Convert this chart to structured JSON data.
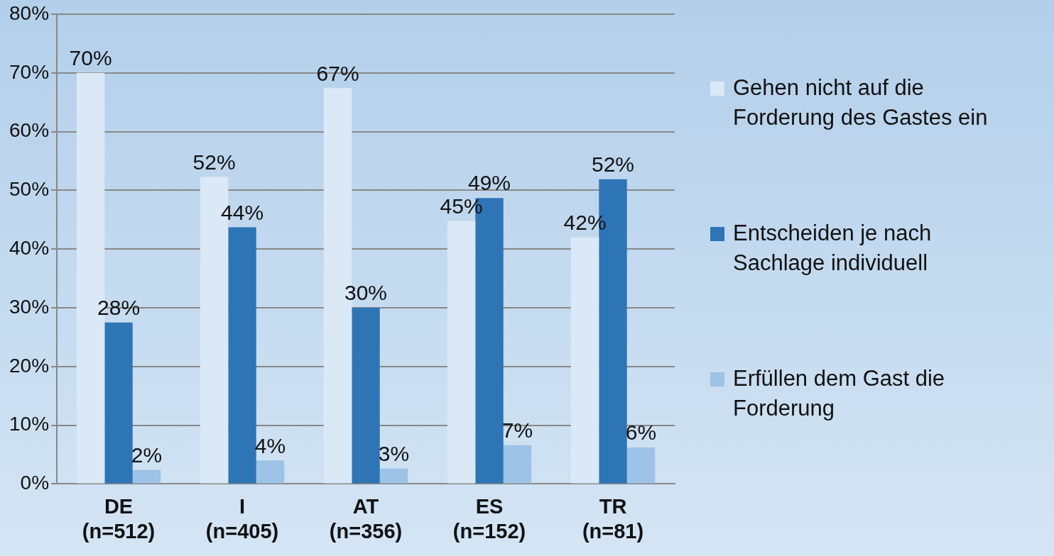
{
  "chart_data": {
    "type": "bar",
    "categories": [
      "DE (n=512)",
      "I (n=405)",
      "AT (n=356)",
      "ES (n=152)",
      "TR (n=81)"
    ],
    "series": [
      {
        "name": "Gehen nicht auf die Forderung des Gastes ein",
        "color": "#dbe8f5",
        "values": [
          70,
          52.3,
          67.4,
          44.8,
          42
        ],
        "value_labels": [
          "70%",
          "52%",
          "67%",
          "45%",
          "42%"
        ]
      },
      {
        "name": "Entscheiden je nach Sachlage individuell",
        "color": "#2e75b6",
        "values": [
          27.5,
          43.7,
          30,
          48.7,
          51.9
        ],
        "value_labels": [
          "28%",
          "44%",
          "30%",
          "49%",
          "52%"
        ]
      },
      {
        "name": "Erfüllen dem Gast die Forderung",
        "color": "#9dc3e6",
        "values": [
          2.4,
          4,
          2.6,
          6.6,
          6.2
        ],
        "value_labels": [
          "2%",
          "4%",
          "3%",
          "7%",
          "6%"
        ]
      }
    ],
    "ylim": [
      0,
      80
    ],
    "yticks": [
      {
        "value": 0,
        "label": "0%"
      },
      {
        "value": 10,
        "label": "10%"
      },
      {
        "value": 20,
        "label": "20%"
      },
      {
        "value": 30,
        "label": "30%"
      },
      {
        "value": 40,
        "label": "40%"
      },
      {
        "value": 50,
        "label": "50%"
      },
      {
        "value": 60,
        "label": "60%"
      },
      {
        "value": 70,
        "label": "70%"
      },
      {
        "value": 80,
        "label": "80%"
      }
    ],
    "grid": "y",
    "legend": "right"
  }
}
